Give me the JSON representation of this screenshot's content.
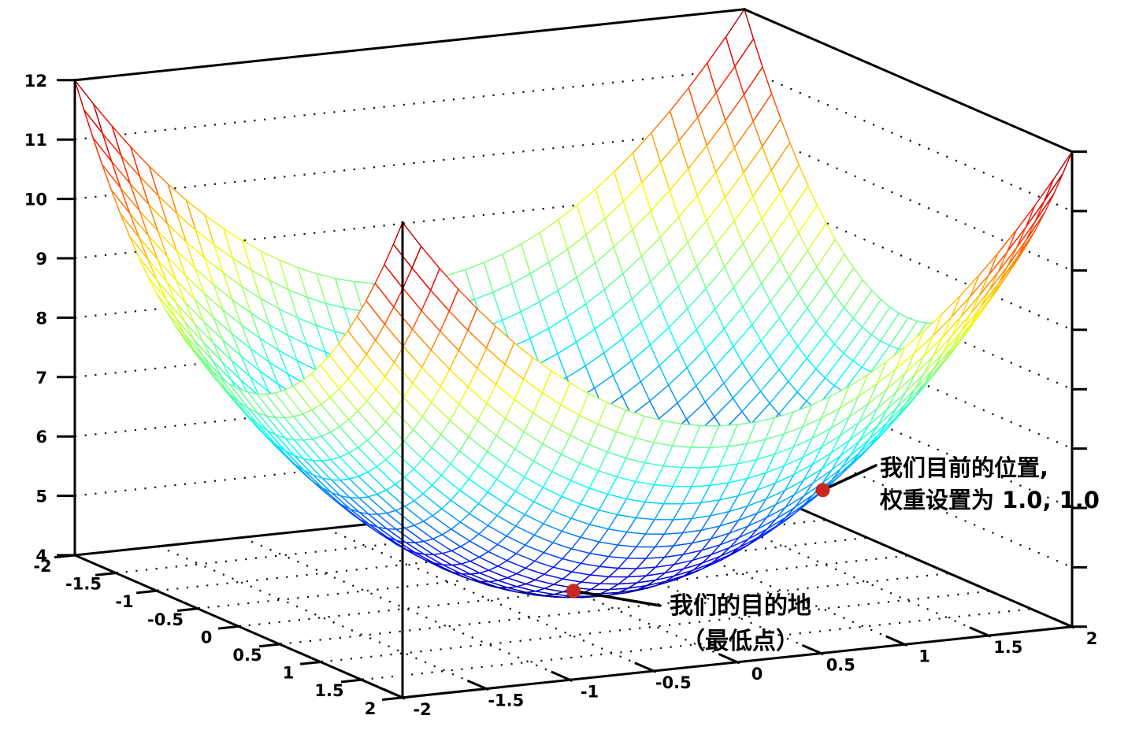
{
  "figure": {
    "background": "#ffffff"
  },
  "chart_data": {
    "type": "3d-surface-mesh",
    "title": "",
    "z_formula": "z = 4 + x^2 + y^2",
    "z_offset": 4,
    "x_range": [
      -2,
      2
    ],
    "y_range": [
      -2,
      2
    ],
    "z_range": [
      4,
      12
    ],
    "mesh_divisions": 36,
    "colormap": "jet",
    "grid": "dotted walls and floor",
    "legend": "none",
    "x_tick_values": [
      -2,
      -1.5,
      -1,
      -0.5,
      0,
      0.5,
      1,
      1.5,
      2
    ],
    "x_tick_labels": [
      "-2",
      "-1.5",
      "-1",
      "-0.5",
      "0",
      "0.5",
      "1",
      "1.5",
      "2"
    ],
    "y_tick_values": [
      -2,
      -1.5,
      -1,
      -0.5,
      0,
      0.5,
      1,
      1.5,
      2
    ],
    "y_tick_labels": [
      "-2",
      "-1.5",
      "-1",
      "-0.5",
      "0",
      "0.5",
      "1",
      "1.5",
      "2"
    ],
    "z_tick_values": [
      4,
      5,
      6,
      7,
      8,
      9,
      10,
      11,
      12
    ],
    "z_tick_labels": [
      "4",
      "5",
      "6",
      "7",
      "8",
      "9",
      "10",
      "11",
      "12"
    ],
    "wall_grid_z_values": [
      5,
      6,
      7,
      8,
      9,
      10,
      11
    ],
    "floor_grid_values": [
      -1.5,
      -1,
      -0.5,
      0,
      0.5,
      1,
      1.5
    ],
    "axis_color": "#000000",
    "grid_dot_color": "#111111",
    "marker_color": "#c8281e",
    "leader_color": "#000000",
    "points": [
      {
        "x": 1,
        "y": 1,
        "z": 6,
        "label_lines": [
          "我们目前的位置,",
          "权重设置为 1.0, 1.0"
        ]
      },
      {
        "x": 0,
        "y": 0,
        "z": 4,
        "label_lines": [
          "我们的目的地",
          "（最低点）"
        ]
      }
    ]
  }
}
